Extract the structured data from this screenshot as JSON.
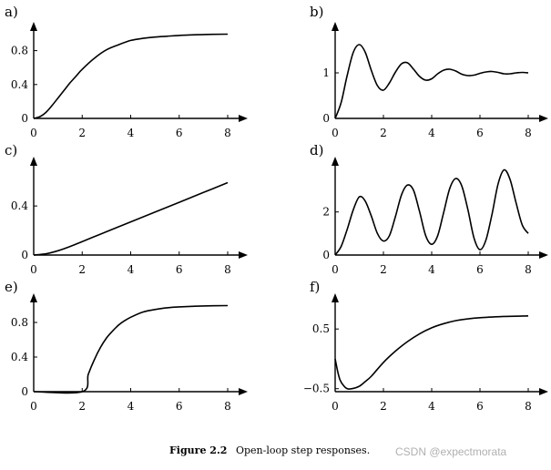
{
  "caption": {
    "number": "Figure 2.2",
    "text": "Open-loop step responses."
  },
  "watermark": "CSDN @expectmorata",
  "chart_data": [
    {
      "type": "line",
      "panel_label": "a)",
      "xlim": [
        0,
        8
      ],
      "ylim": [
        0,
        1.0
      ],
      "x_ticks": [
        0,
        2,
        4,
        6,
        8
      ],
      "x_tick_labels": [
        "0",
        "2",
        "4",
        "6",
        "8"
      ],
      "y_ticks": [
        0,
        0.4,
        0.8
      ],
      "y_tick_labels": [
        "0",
        "0.4",
        "0.8"
      ],
      "x": [
        0,
        0.25,
        0.5,
        0.75,
        1,
        1.25,
        1.5,
        1.75,
        2,
        2.5,
        3,
        3.5,
        4,
        4.5,
        5,
        5.5,
        6,
        7,
        8
      ],
      "y": [
        0,
        0.02,
        0.07,
        0.15,
        0.24,
        0.33,
        0.42,
        0.5,
        0.58,
        0.71,
        0.81,
        0.87,
        0.92,
        0.945,
        0.96,
        0.97,
        0.98,
        0.99,
        0.995
      ]
    },
    {
      "type": "line",
      "panel_label": "b)",
      "xlim": [
        0,
        8
      ],
      "ylim": [
        0,
        1.7
      ],
      "x_ticks": [
        0,
        2,
        4,
        6,
        8
      ],
      "x_tick_labels": [
        "0",
        "2",
        "4",
        "6",
        "8"
      ],
      "y_ticks": [
        0,
        1
      ],
      "y_tick_labels": [
        "0",
        "1"
      ],
      "x": [
        0,
        0.25,
        0.5,
        0.75,
        1,
        1.25,
        1.5,
        1.75,
        2,
        2.25,
        2.5,
        2.75,
        3,
        3.25,
        3.5,
        3.75,
        4,
        4.25,
        4.5,
        4.75,
        5,
        5.25,
        5.5,
        5.75,
        6,
        6.25,
        6.5,
        6.75,
        7,
        7.25,
        7.5,
        7.75,
        8
      ],
      "y": [
        0,
        0.35,
        0.95,
        1.45,
        1.62,
        1.45,
        1.05,
        0.72,
        0.62,
        0.78,
        1.02,
        1.2,
        1.22,
        1.08,
        0.92,
        0.84,
        0.87,
        0.98,
        1.06,
        1.08,
        1.04,
        0.97,
        0.94,
        0.95,
        0.99,
        1.02,
        1.03,
        1.01,
        0.98,
        0.98,
        1.0,
        1.01,
        1.0
      ]
    },
    {
      "type": "line",
      "panel_label": "c)",
      "xlim": [
        0,
        8
      ],
      "ylim": [
        0,
        0.75
      ],
      "x_ticks": [
        0,
        2,
        4,
        6,
        8
      ],
      "x_tick_labels": [
        "0",
        "2",
        "4",
        "6",
        "8"
      ],
      "y_ticks": [
        0,
        0.4
      ],
      "y_tick_labels": [
        "0",
        "0.4"
      ],
      "x": [
        0,
        0.5,
        1,
        1.5,
        2,
        2.5,
        3,
        4,
        5,
        6,
        7,
        8
      ],
      "y": [
        0,
        0.01,
        0.035,
        0.07,
        0.11,
        0.15,
        0.19,
        0.27,
        0.35,
        0.43,
        0.51,
        0.59
      ]
    },
    {
      "type": "line",
      "panel_label": "d)",
      "xlim": [
        0,
        8
      ],
      "ylim": [
        0,
        4.1
      ],
      "x_ticks": [
        0,
        2,
        4,
        6,
        8
      ],
      "x_tick_labels": [
        "0",
        "2",
        "4",
        "6",
        "8"
      ],
      "y_ticks": [
        0,
        2
      ],
      "y_tick_labels": [
        "0",
        "2"
      ],
      "x": [
        0,
        0.25,
        0.5,
        0.75,
        1,
        1.25,
        1.5,
        1.75,
        2,
        2.25,
        2.5,
        2.75,
        3,
        3.25,
        3.5,
        3.75,
        4,
        4.25,
        4.5,
        4.75,
        5,
        5.25,
        5.5,
        5.75,
        6,
        6.25,
        6.5,
        6.75,
        7,
        7.25,
        7.5,
        7.75,
        8
      ],
      "y": [
        0,
        0.4,
        1.2,
        2.1,
        2.7,
        2.5,
        1.8,
        1.0,
        0.65,
        0.9,
        1.8,
        2.8,
        3.25,
        3.0,
        2.0,
        0.9,
        0.5,
        0.9,
        2.0,
        3.1,
        3.55,
        3.2,
        2.1,
        0.8,
        0.25,
        0.7,
        1.9,
        3.3,
        3.95,
        3.5,
        2.4,
        1.4,
        1.0
      ]
    },
    {
      "type": "line",
      "panel_label": "e)",
      "xlim": [
        0,
        8
      ],
      "ylim": [
        0,
        1.0
      ],
      "x_ticks": [
        0,
        2,
        4,
        6,
        8
      ],
      "x_tick_labels": [
        "0",
        "2",
        "4",
        "6",
        "8"
      ],
      "y_ticks": [
        0,
        0.4,
        0.8
      ],
      "y_tick_labels": [
        "0",
        "0.4",
        "0.8"
      ],
      "x": [
        0,
        2,
        2.25,
        2.5,
        2.75,
        3,
        3.25,
        3.5,
        3.75,
        4,
        4.5,
        5,
        5.5,
        6,
        7,
        8
      ],
      "y": [
        0,
        0,
        0.2,
        0.37,
        0.51,
        0.62,
        0.7,
        0.77,
        0.82,
        0.86,
        0.92,
        0.95,
        0.97,
        0.98,
        0.99,
        0.995
      ]
    },
    {
      "type": "line",
      "panel_label": "f)",
      "xlim": [
        0,
        8
      ],
      "ylim": [
        -0.55,
        0.9
      ],
      "x_ticks": [
        0,
        2,
        4,
        6,
        8
      ],
      "x_tick_labels": [
        "0",
        "2",
        "4",
        "6",
        "8"
      ],
      "y_ticks": [
        -0.5,
        0.5
      ],
      "y_tick_labels": [
        "-0.5",
        "0.5"
      ],
      "x": [
        0,
        0.1,
        0.2,
        0.35,
        0.5,
        0.7,
        1,
        1.25,
        1.5,
        2,
        2.5,
        3,
        3.5,
        4,
        4.5,
        5,
        5.5,
        6,
        7,
        8
      ],
      "y": [
        0,
        -0.2,
        -0.35,
        -0.45,
        -0.5,
        -0.5,
        -0.46,
        -0.38,
        -0.29,
        -0.06,
        0.13,
        0.29,
        0.42,
        0.52,
        0.59,
        0.64,
        0.67,
        0.69,
        0.71,
        0.72
      ]
    }
  ]
}
